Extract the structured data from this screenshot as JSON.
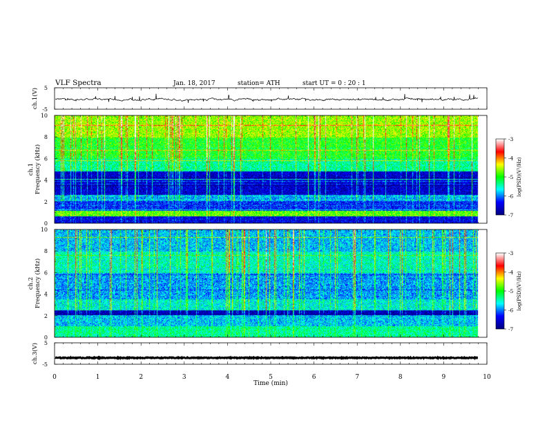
{
  "header": {
    "title": "VLF  Spectra",
    "date": "Jan. 18, 2017",
    "station": "station= ATH",
    "start": "start  UT  =    0  : 20 : 1"
  },
  "chart_data": [
    {
      "type": "line",
      "name": "ch1-waveform",
      "ylabel": "ch.1(V)",
      "ylim": [
        -5,
        5
      ],
      "yticks": [
        "5",
        "-5"
      ],
      "xlim": [
        0,
        10
      ],
      "note_values": "noisy waveform centred near -0.2 V with spikes up to about +1.5 V and down to about -2.5 V, ending at about 9.8 min"
    },
    {
      "type": "heatmap",
      "name": "ch1-spectrogram",
      "ylabel": "ch.1\nFrequency (kHz)",
      "ylim": [
        0,
        10
      ],
      "yticks": [
        "0",
        "2",
        "4",
        "6",
        "8",
        "10"
      ],
      "xlim": [
        0,
        10
      ],
      "data_end_min": 9.8,
      "colorbar": {
        "label": "log(PSD)(V²/Hz)",
        "range": [
          -7,
          -3
        ],
        "ticks": [
          "-3",
          "-4",
          "-5",
          "-6",
          "-7"
        ]
      },
      "bands_khz": [
        {
          "from": 0,
          "to": 0.6,
          "level": -6.5
        },
        {
          "from": 0.6,
          "to": 1.1,
          "level": -4.8
        },
        {
          "from": 1.1,
          "to": 2.0,
          "level": -6.3
        },
        {
          "from": 2.0,
          "to": 2.6,
          "level": -5.8
        },
        {
          "from": 2.6,
          "to": 4.8,
          "level": -6.6
        },
        {
          "from": 4.8,
          "to": 6.0,
          "level": -5.4
        },
        {
          "from": 6.0,
          "to": 8.0,
          "level": -5.0
        },
        {
          "from": 8.0,
          "to": 10.0,
          "level": -4.6
        }
      ]
    },
    {
      "type": "heatmap",
      "name": "ch2-spectrogram",
      "ylabel": "ch.2\nFrequency (kHz)",
      "ylim": [
        0,
        10
      ],
      "yticks": [
        "0",
        "2",
        "4",
        "6",
        "8",
        "10"
      ],
      "xlim": [
        0,
        10
      ],
      "data_end_min": 9.8,
      "colorbar": {
        "label": "log(PSD)(V²/Hz)",
        "range": [
          -7,
          -3
        ],
        "ticks": [
          "-3",
          "-4",
          "-5",
          "-6",
          "-7"
        ]
      },
      "bands_khz": [
        {
          "from": 0,
          "to": 1.0,
          "level": -5.4
        },
        {
          "from": 1.0,
          "to": 2.0,
          "level": -5.8
        },
        {
          "from": 2.0,
          "to": 2.5,
          "level": -6.7
        },
        {
          "from": 2.5,
          "to": 3.5,
          "level": -5.6
        },
        {
          "from": 3.5,
          "to": 6.0,
          "level": -5.9
        },
        {
          "from": 6.0,
          "to": 8.0,
          "level": -5.5
        },
        {
          "from": 8.0,
          "to": 10.0,
          "level": -5.8
        }
      ]
    },
    {
      "type": "line",
      "name": "ch3-waveform",
      "ylabel": "ch.3(V)",
      "ylim": [
        -5,
        5
      ],
      "yticks": [
        "5",
        "-5"
      ],
      "xlim": [
        0,
        10
      ],
      "note_values": "flat thick trace at about -2 V, ending at about 9.8 min"
    }
  ],
  "x_axis": {
    "label": "Time  (min)",
    "ticks": [
      "0",
      "1",
      "2",
      "3",
      "4",
      "5",
      "6",
      "7",
      "8",
      "9",
      "10"
    ]
  },
  "colors": {
    "colormap": [
      "#000080",
      "#0000ff",
      "#00ffff",
      "#00ff00",
      "#ffff00",
      "#ff0000",
      "#ffffff"
    ]
  }
}
